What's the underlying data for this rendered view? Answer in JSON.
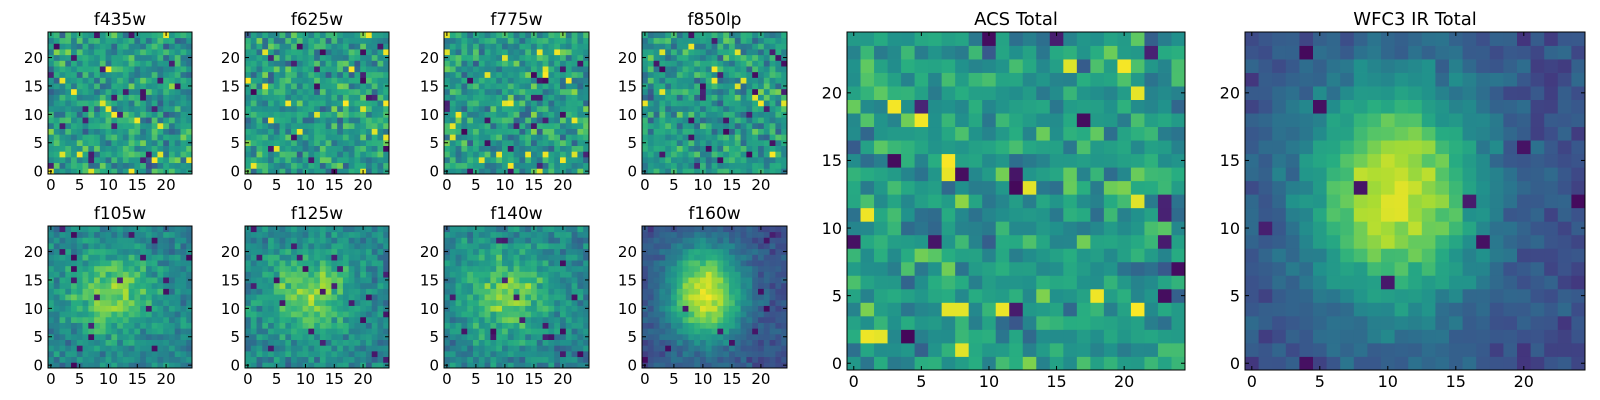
{
  "chart_data": [
    {
      "type": "heatmap",
      "title": "f435w",
      "xticks": [
        "0",
        "5",
        "10",
        "15",
        "20"
      ],
      "yticks": [
        "0",
        "5",
        "10",
        "15",
        "20"
      ],
      "grid_size": 25,
      "xlim": [
        -0.5,
        24.5
      ],
      "ylim": [
        -0.5,
        24.5
      ],
      "colormap": "viridis",
      "pattern": "noise"
    },
    {
      "type": "heatmap",
      "title": "f625w",
      "xticks": [
        "0",
        "5",
        "10",
        "15",
        "20"
      ],
      "yticks": [
        "0",
        "5",
        "10",
        "15",
        "20"
      ],
      "grid_size": 25,
      "xlim": [
        -0.5,
        24.5
      ],
      "ylim": [
        -0.5,
        24.5
      ],
      "colormap": "viridis",
      "pattern": "noise"
    },
    {
      "type": "heatmap",
      "title": "f775w",
      "xticks": [
        "0",
        "5",
        "10",
        "15",
        "20"
      ],
      "yticks": [
        "0",
        "5",
        "10",
        "15",
        "20"
      ],
      "grid_size": 25,
      "xlim": [
        -0.5,
        24.5
      ],
      "ylim": [
        -0.5,
        24.5
      ],
      "colormap": "viridis",
      "pattern": "noise"
    },
    {
      "type": "heatmap",
      "title": "f850lp",
      "xticks": [
        "0",
        "5",
        "10",
        "15",
        "20"
      ],
      "yticks": [
        "0",
        "5",
        "10",
        "15",
        "20"
      ],
      "grid_size": 25,
      "xlim": [
        -0.5,
        24.5
      ],
      "ylim": [
        -0.5,
        24.5
      ],
      "colormap": "viridis",
      "pattern": "noise"
    },
    {
      "type": "heatmap",
      "title": "f105w",
      "xticks": [
        "0",
        "5",
        "10",
        "15",
        "20"
      ],
      "yticks": [
        "0",
        "5",
        "10",
        "15",
        "20"
      ],
      "grid_size": 25,
      "xlim": [
        -0.5,
        24.5
      ],
      "ylim": [
        -0.5,
        24.5
      ],
      "colormap": "viridis",
      "pattern": "weak-source"
    },
    {
      "type": "heatmap",
      "title": "f125w",
      "xticks": [
        "0",
        "5",
        "10",
        "15",
        "20"
      ],
      "yticks": [
        "0",
        "5",
        "10",
        "15",
        "20"
      ],
      "grid_size": 25,
      "xlim": [
        -0.5,
        24.5
      ],
      "ylim": [
        -0.5,
        24.5
      ],
      "colormap": "viridis",
      "pattern": "weak-source"
    },
    {
      "type": "heatmap",
      "title": "f140w",
      "xticks": [
        "0",
        "5",
        "10",
        "15",
        "20"
      ],
      "yticks": [
        "0",
        "5",
        "10",
        "15",
        "20"
      ],
      "grid_size": 25,
      "xlim": [
        -0.5,
        24.5
      ],
      "ylim": [
        -0.5,
        24.5
      ],
      "colormap": "viridis",
      "pattern": "weak-source"
    },
    {
      "type": "heatmap",
      "title": "f160w",
      "xticks": [
        "0",
        "5",
        "10",
        "15",
        "20"
      ],
      "yticks": [
        "0",
        "5",
        "10",
        "15",
        "20"
      ],
      "grid_size": 25,
      "xlim": [
        -0.5,
        24.5
      ],
      "ylim": [
        -0.5,
        24.5
      ],
      "colormap": "viridis",
      "pattern": "source"
    },
    {
      "type": "heatmap",
      "title": "ACS Total",
      "xticks": [
        "0",
        "5",
        "10",
        "15",
        "20"
      ],
      "yticks": [
        "0",
        "5",
        "10",
        "15",
        "20"
      ],
      "grid_size": 25,
      "xlim": [
        -0.5,
        24.5
      ],
      "ylim": [
        -0.5,
        24.5
      ],
      "colormap": "viridis",
      "pattern": "noise"
    },
    {
      "type": "heatmap",
      "title": "WFC3 IR Total",
      "xticks": [
        "0",
        "5",
        "10",
        "15",
        "20"
      ],
      "yticks": [
        "0",
        "5",
        "10",
        "15",
        "20"
      ],
      "grid_size": 25,
      "xlim": [
        -0.5,
        24.5
      ],
      "ylim": [
        -0.5,
        24.5
      ],
      "colormap": "viridis",
      "pattern": "source"
    }
  ]
}
